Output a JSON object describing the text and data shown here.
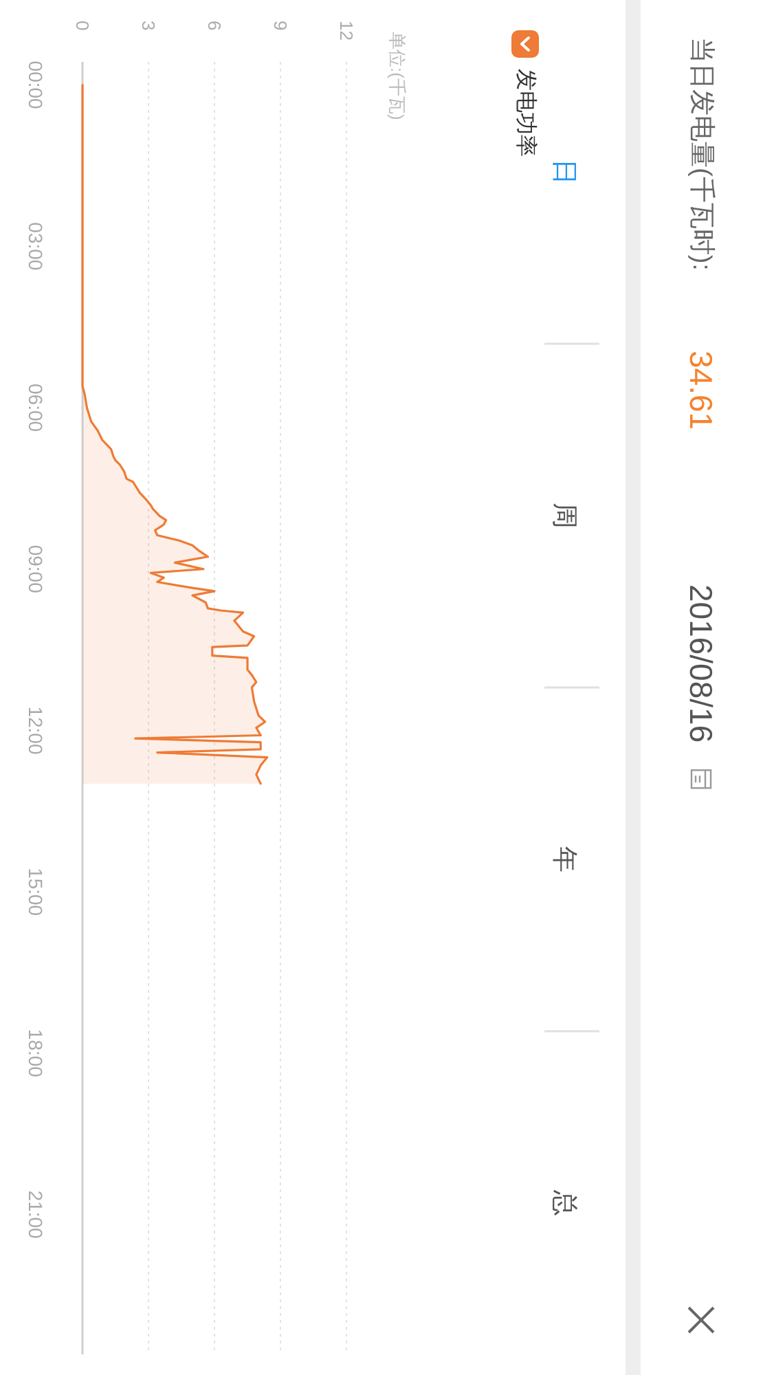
{
  "chart_data": {
    "type": "area",
    "orientation": "horizontal",
    "title": "当日发电量(千瓦时):",
    "annotations": [
      "单位:(千瓦)",
      "34.61",
      "2016/08/16",
      "日",
      "周",
      "年",
      "总"
    ],
    "legend": "top right",
    "grid": "x",
    "xlim": [
      0,
      12
    ],
    "xticks": [
      0,
      3,
      6,
      9,
      12
    ],
    "ylim": [
      23.6,
      -0.43
    ],
    "yticks": [
      {
        "value": 0,
        "label": "00:00"
      },
      {
        "value": 3,
        "label": "03:00"
      },
      {
        "value": 6,
        "label": "06:00"
      },
      {
        "value": 9,
        "label": "09:00"
      },
      {
        "value": 12,
        "label": "12:00"
      },
      {
        "value": 15,
        "label": "15:00"
      },
      {
        "value": 18,
        "label": "18:00"
      },
      {
        "value": 21,
        "label": "21:00"
      }
    ],
    "series": [
      {
        "name": "发电功率",
        "color": "#ee7b36",
        "x": [
          0,
          5.6,
          5.75,
          6.0,
          6.26,
          6.43,
          6.6,
          6.77,
          6.9,
          6.98,
          7.06,
          7.19,
          7.32,
          7.38,
          7.58,
          7.71,
          7.81,
          7.88,
          8.01,
          8.09,
          8.17,
          8.28,
          8.37,
          8.47,
          8.56,
          8.66,
          8.77,
          8.88,
          9.0,
          9.07,
          9.16,
          9.24,
          9.35,
          9.41,
          9.49,
          9.62,
          9.73,
          9.77,
          9.81,
          9.96,
          10.16,
          10.25,
          10.42,
          10.45,
          10.61,
          10.65,
          10.87,
          10.97,
          11.1,
          11.2,
          11.46,
          11.72,
          11.84,
          11.95,
          12.09,
          12.15,
          12.22,
          12.35,
          12.41,
          12.5,
          12.65,
          12.82,
          12.99
        ],
        "values": [
          0,
          0,
          0.1,
          0.2,
          0.4,
          0.7,
          0.9,
          1.3,
          1.4,
          1.5,
          1.7,
          1.9,
          2.0,
          2.3,
          2.6,
          2.9,
          3.1,
          3.2,
          3.5,
          3.8,
          3.7,
          3.3,
          3.4,
          4.4,
          5.0,
          5.3,
          5.7,
          4.2,
          5.5,
          3.1,
          3.7,
          3.4,
          5.0,
          6.0,
          5.0,
          5.6,
          5.7,
          6.3,
          7.3,
          6.9,
          7.3,
          7.8,
          7.5,
          5.9,
          5.9,
          7.5,
          7.5,
          7.7,
          7.9,
          7.7,
          7.8,
          8.0,
          8.3,
          7.9,
          8.1,
          2.4,
          8.1,
          8.1,
          3.4,
          8.4,
          8.1,
          7.9,
          8.1
        ]
      }
    ]
  }
}
